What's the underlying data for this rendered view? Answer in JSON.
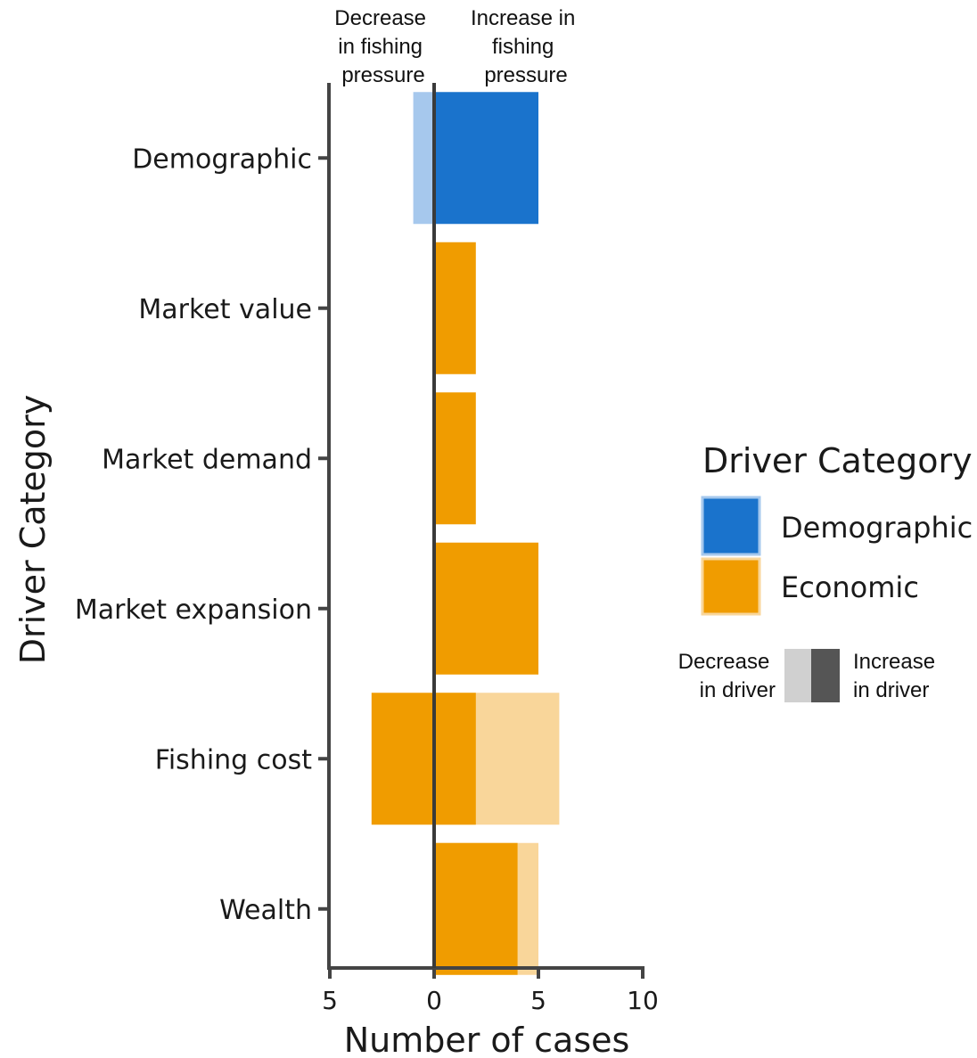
{
  "chart_data": {
    "type": "bar",
    "orientation": "horizontal",
    "xlabel": "Number of cases",
    "ylabel": "Driver Category",
    "xlim": [
      -5,
      10
    ],
    "xticks": [
      -5,
      0,
      5,
      10
    ],
    "xtick_labels": [
      "5",
      "0",
      "5",
      "10"
    ],
    "categories": [
      "Demographic",
      "Market value",
      "Market demand",
      "Market expansion",
      "Fishing cost",
      "Wealth"
    ],
    "category_group": [
      "Demographic",
      "Economic",
      "Economic",
      "Economic",
      "Economic",
      "Economic"
    ],
    "series": [
      {
        "name": "Increase in driver",
        "increase_in_fishing_pressure": [
          5,
          2,
          2,
          5,
          2,
          4
        ],
        "decrease_in_fishing_pressure": [
          0,
          0,
          0,
          0,
          3,
          0
        ]
      },
      {
        "name": "Decrease in driver",
        "increase_in_fishing_pressure": [
          0,
          0,
          0,
          0,
          6,
          5
        ],
        "decrease_in_fishing_pressure": [
          1,
          0,
          0,
          0,
          0,
          0
        ]
      }
    ],
    "top_annotations": {
      "left": [
        "Decrease",
        "in fishing",
        "pressure"
      ],
      "right": [
        "Increase in",
        "fishing",
        "pressure"
      ]
    },
    "legend": {
      "title": "Driver Category",
      "items": [
        {
          "label": "Demographic",
          "color": "#1a73cc"
        },
        {
          "label": "Economic",
          "color": "#f09c00"
        }
      ],
      "shade_key": {
        "left_lines": [
          "Decrease",
          "in driver"
        ],
        "right_lines": [
          "Increase",
          "in driver"
        ],
        "light_color": "#d0d0d0",
        "dark_color": "#555555"
      }
    },
    "colors": {
      "Demographic": {
        "dark": "#1a73cc",
        "light": "#a6c8ed"
      },
      "Economic": {
        "dark": "#f09c00",
        "light": "#f9d69a"
      }
    }
  }
}
